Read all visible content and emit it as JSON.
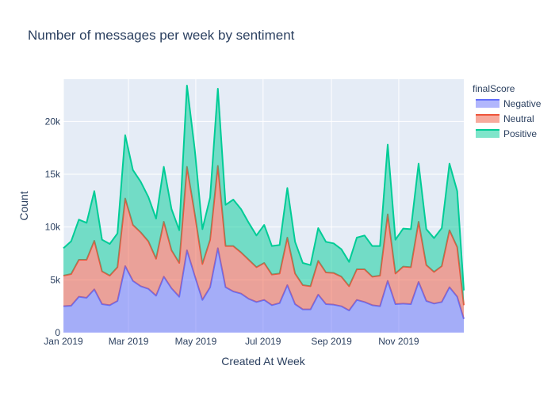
{
  "chart_data": {
    "type": "area",
    "stacked": true,
    "title": "Number of messages per week by sentiment",
    "xlabel": "Created At Week",
    "ylabel": "Count",
    "ylim": [
      0,
      24000
    ],
    "y_ticks": [
      0,
      5000,
      10000,
      15000,
      20000
    ],
    "y_tick_labels": [
      "0",
      "5k",
      "10k",
      "15k",
      "20k"
    ],
    "x_tick_labels": [
      "Jan 2019",
      "Mar 2019",
      "May 2019",
      "Jul 2019",
      "Sep 2019",
      "Nov 2019"
    ],
    "x_tick_dates": [
      "2019-01-01",
      "2019-03-01",
      "2019-05-01",
      "2019-07-01",
      "2019-09-01",
      "2019-11-01"
    ],
    "x_range": [
      "2019-01-01",
      "2019-12-30"
    ],
    "grid": true,
    "legend_title": "finalScore",
    "legend_position": "top-right",
    "x": [
      "2019-01-01",
      "2019-01-08",
      "2019-01-15",
      "2019-01-22",
      "2019-01-29",
      "2019-02-05",
      "2019-02-12",
      "2019-02-19",
      "2019-02-26",
      "2019-03-05",
      "2019-03-12",
      "2019-03-19",
      "2019-03-26",
      "2019-04-02",
      "2019-04-09",
      "2019-04-16",
      "2019-04-23",
      "2019-04-30",
      "2019-05-07",
      "2019-05-14",
      "2019-05-21",
      "2019-05-28",
      "2019-06-04",
      "2019-06-11",
      "2019-06-18",
      "2019-06-25",
      "2019-07-02",
      "2019-07-09",
      "2019-07-16",
      "2019-07-23",
      "2019-07-30",
      "2019-08-06",
      "2019-08-13",
      "2019-08-20",
      "2019-08-27",
      "2019-09-03",
      "2019-09-10",
      "2019-09-17",
      "2019-09-24",
      "2019-10-01",
      "2019-10-08",
      "2019-10-15",
      "2019-10-22",
      "2019-10-29",
      "2019-11-05",
      "2019-11-12",
      "2019-11-19",
      "2019-11-26",
      "2019-12-03",
      "2019-12-10",
      "2019-12-17",
      "2019-12-24",
      "2019-12-30"
    ],
    "series": [
      {
        "name": "Negative",
        "color": "#636efa",
        "fill": "rgba(99,110,250,0.5)",
        "values": [
          2500,
          2550,
          3400,
          3300,
          4100,
          2700,
          2600,
          3000,
          6300,
          4900,
          4400,
          4150,
          3500,
          5300,
          4200,
          3400,
          7800,
          5400,
          3100,
          4300,
          8000,
          4300,
          3900,
          3700,
          3200,
          2900,
          3100,
          2600,
          2800,
          4500,
          2700,
          2200,
          2200,
          3600,
          2700,
          2650,
          2500,
          2100,
          3100,
          2900,
          2600,
          2500,
          4900,
          2700,
          2750,
          2700,
          4800,
          3000,
          2750,
          2900,
          4300,
          3400,
          1300
        ]
      },
      {
        "name": "Neutral",
        "color": "#ef553b",
        "fill": "rgba(239,85,59,0.5)",
        "values": [
          2900,
          3000,
          3500,
          3600,
          4600,
          3100,
          2800,
          3200,
          6400,
          5300,
          5100,
          4500,
          3500,
          5200,
          3600,
          3200,
          7900,
          5900,
          3400,
          4500,
          7800,
          3900,
          4300,
          3900,
          3700,
          3300,
          3500,
          2900,
          2800,
          4500,
          2900,
          2300,
          2200,
          3200,
          3000,
          3000,
          2800,
          2300,
          2900,
          3100,
          2700,
          2900,
          6300,
          2900,
          3500,
          3500,
          5700,
          3400,
          3000,
          3400,
          5400,
          4700,
          1300
        ]
      },
      {
        "name": "Positive",
        "color": "#00cc96",
        "fill": "rgba(0,204,150,0.5)",
        "values": [
          2600,
          3100,
          3800,
          3500,
          4700,
          3000,
          3000,
          3200,
          6000,
          5200,
          4800,
          4200,
          3800,
          5200,
          3900,
          3100,
          7700,
          6100,
          3300,
          4000,
          7300,
          3900,
          4400,
          4100,
          3500,
          3000,
          3600,
          2700,
          2700,
          4700,
          3000,
          2100,
          2000,
          3100,
          2900,
          2800,
          2600,
          2300,
          3000,
          3200,
          2900,
          2800,
          6600,
          3200,
          3600,
          3600,
          5500,
          3400,
          3200,
          3600,
          6300,
          5300,
          1400
        ]
      }
    ]
  }
}
